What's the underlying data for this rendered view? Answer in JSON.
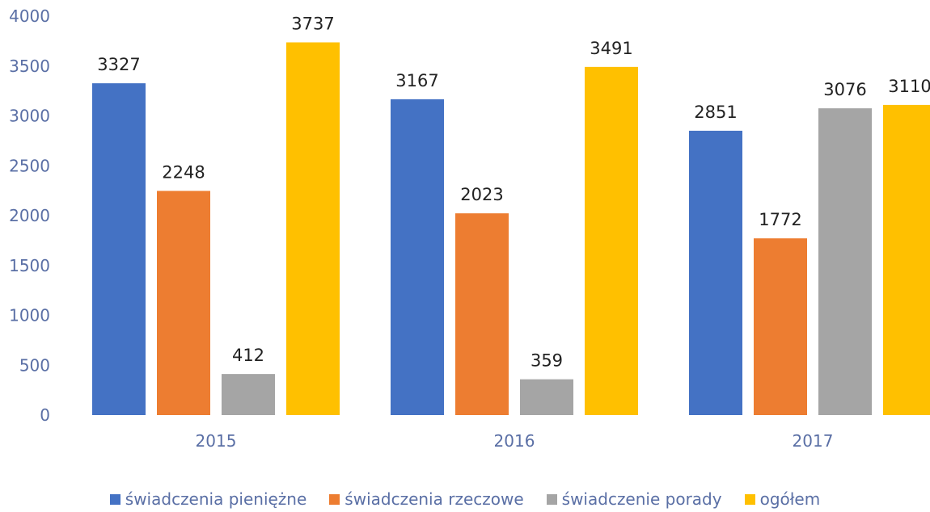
{
  "chart_data": {
    "type": "bar",
    "title": "",
    "xlabel": "",
    "ylabel": "",
    "categories": [
      "2015",
      "2016",
      "2017"
    ],
    "ylim": [
      0,
      4000
    ],
    "yticks": [
      0,
      500,
      1000,
      1500,
      2000,
      2500,
      3000,
      3500,
      4000
    ],
    "grid": false,
    "legend_position": "bottom",
    "series": [
      {
        "name": "świadczenia pieniężne",
        "color": "#4472c4",
        "values": [
          3327,
          3167,
          2851
        ]
      },
      {
        "name": "świadczenia rzeczowe",
        "color": "#ed7d31",
        "values": [
          2248,
          2023,
          1772
        ]
      },
      {
        "name": "świadczenie porady",
        "color": "#a5a5a5",
        "values": [
          412,
          359,
          3076
        ]
      },
      {
        "name": "ogółem",
        "color": "#ffc000",
        "values": [
          3737,
          3491,
          3110
        ]
      }
    ]
  }
}
